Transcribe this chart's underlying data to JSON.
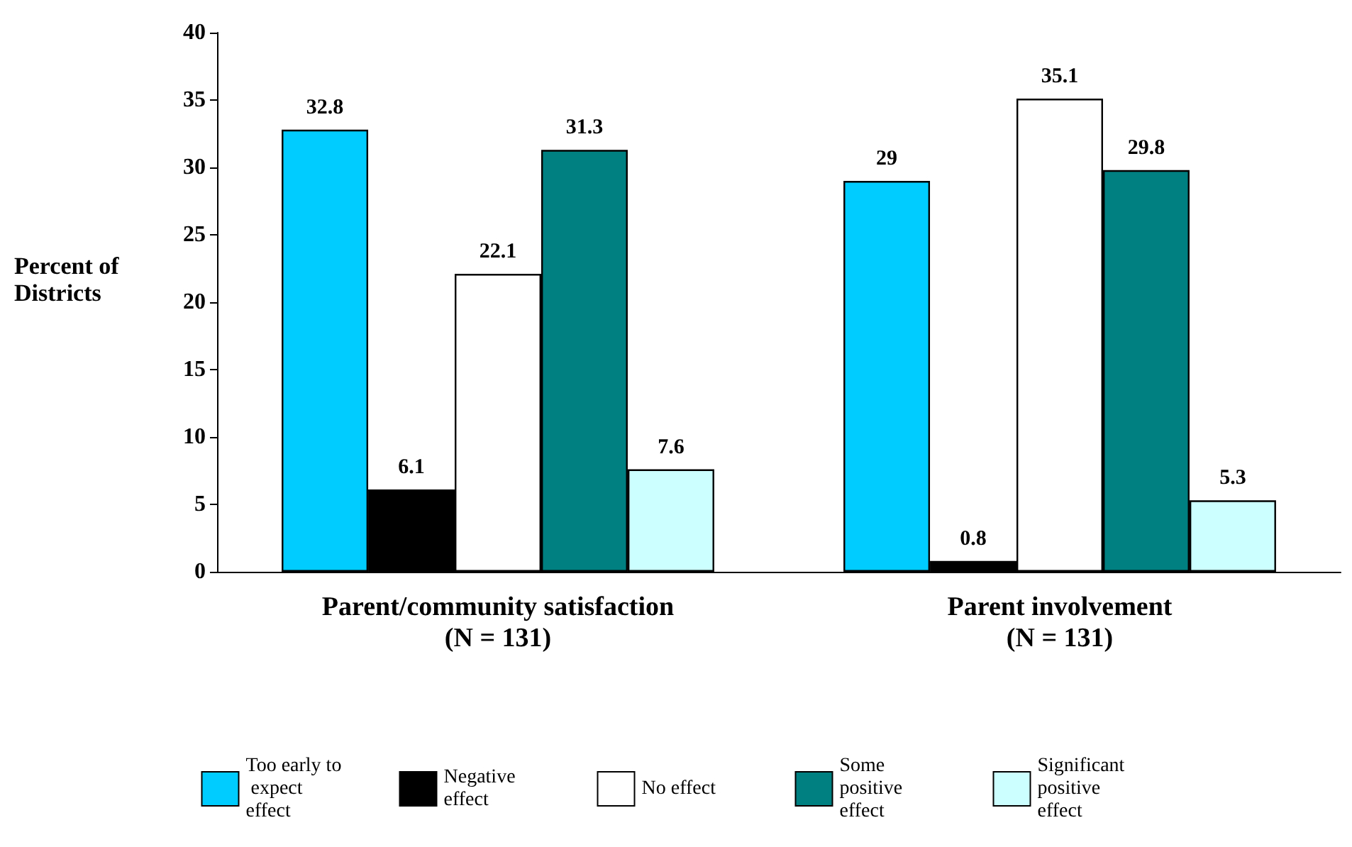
{
  "chart_data": {
    "type": "bar",
    "ylabel": "Percent of Districts",
    "categories": [
      "Parent/community satisfaction\n(N = 131)",
      "Parent involvement\n(N = 131)"
    ],
    "series": [
      {
        "name": "Too early to expect effect",
        "color": "#00ccff",
        "values": [
          32.8,
          29
        ]
      },
      {
        "name": "Negative effect",
        "color": "#000000",
        "values": [
          6.1,
          0.8
        ]
      },
      {
        "name": "No effect",
        "color": "#ffffff",
        "values": [
          22.1,
          35.1
        ]
      },
      {
        "name": "Some positive effect",
        "color": "#008080",
        "values": [
          31.3,
          29.8
        ]
      },
      {
        "name": "Significant positive effect",
        "color": "#ccffff",
        "values": [
          7.6,
          5.3
        ]
      }
    ],
    "ylim": [
      0,
      40
    ],
    "yticks": [
      0,
      5,
      10,
      15,
      20,
      25,
      30,
      35,
      40
    ],
    "grid": false,
    "legend": "bottom",
    "data_labels": true
  }
}
